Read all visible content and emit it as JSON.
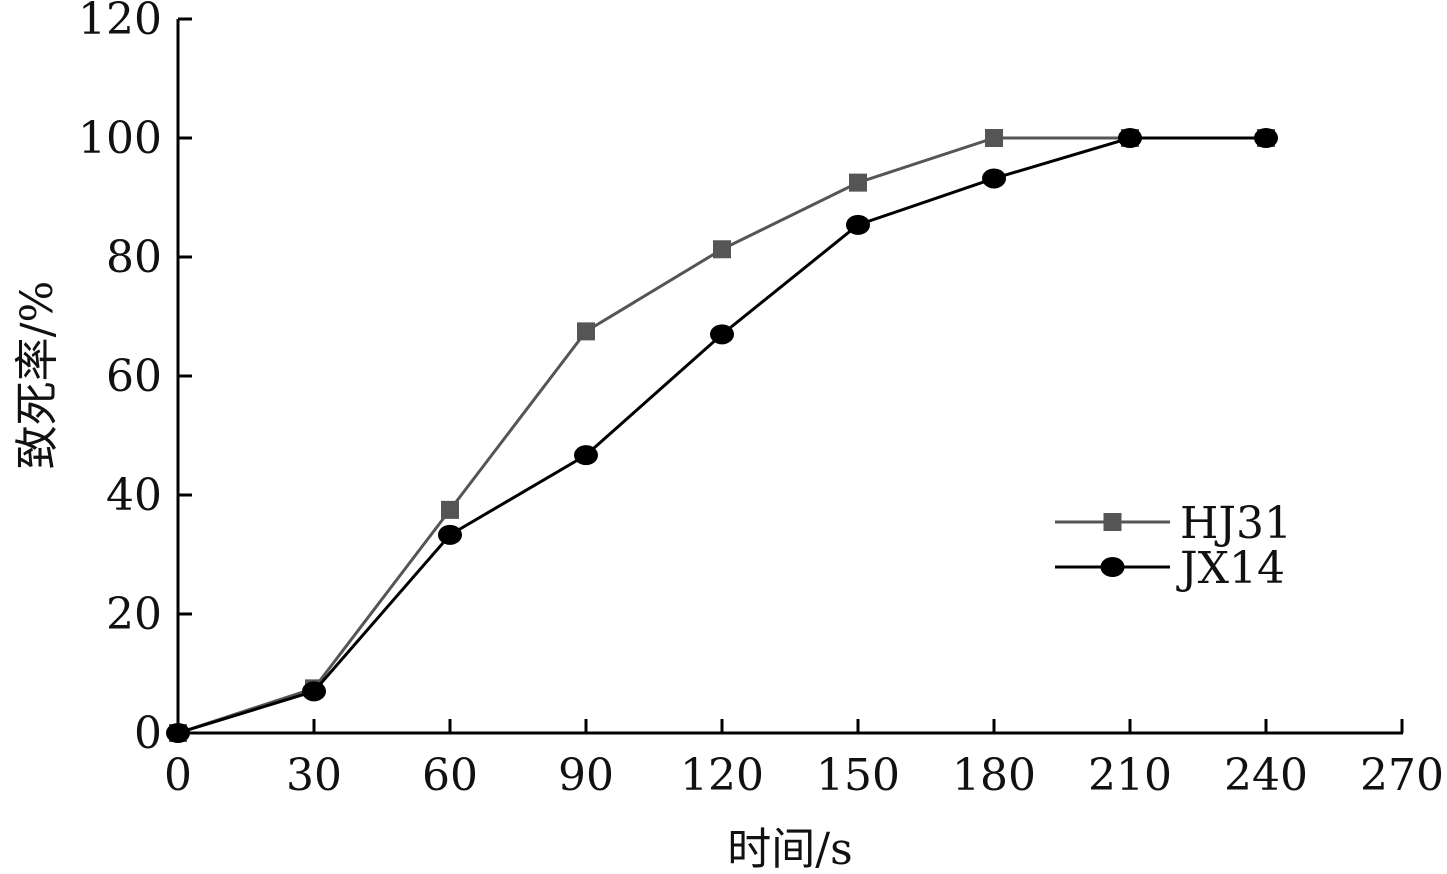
{
  "chart_data": {
    "type": "line",
    "xlabel": "时间/s",
    "ylabel": "致死率/%",
    "xlim": [
      0,
      270
    ],
    "ylim": [
      0,
      120
    ],
    "x_ticks": [
      0,
      30,
      60,
      90,
      120,
      150,
      180,
      210,
      240,
      270
    ],
    "y_ticks": [
      0,
      20,
      40,
      60,
      80,
      100,
      120
    ],
    "grid": false,
    "legend_position": "right",
    "series": [
      {
        "name": "HJ31",
        "marker": "square",
        "color": "#555555",
        "x": [
          0,
          30,
          60,
          90,
          120,
          150,
          180,
          210,
          240
        ],
        "y": [
          0,
          7.5,
          37.5,
          67.5,
          81.3,
          92.5,
          100,
          100,
          100
        ]
      },
      {
        "name": "JX14",
        "marker": "circle",
        "color": "#000000",
        "x": [
          0,
          30,
          60,
          90,
          120,
          150,
          180,
          210,
          240
        ],
        "y": [
          0,
          7,
          33.3,
          46.7,
          67,
          85.4,
          93.2,
          100,
          100
        ]
      }
    ]
  }
}
